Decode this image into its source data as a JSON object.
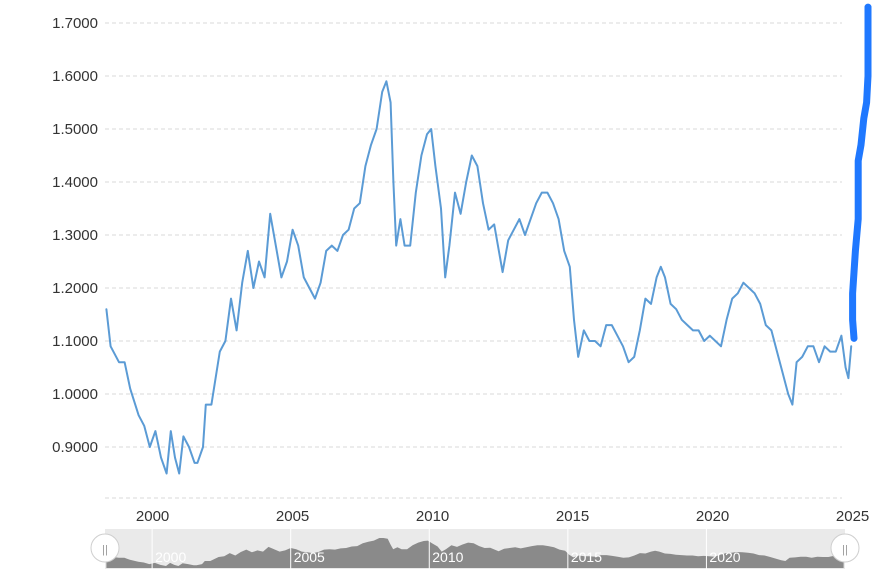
{
  "chart_data": {
    "type": "line",
    "title": "",
    "xlabel": "",
    "ylabel": "",
    "xlim": [
      1998.3,
      2025.0
    ],
    "ylim": [
      0.8,
      1.72
    ],
    "y_ticks": [
      0.9,
      1.0,
      1.1,
      1.2,
      1.3,
      1.4,
      1.5,
      1.6,
      1.7
    ],
    "y_tick_labels": [
      "0.9000",
      "1.0000",
      "1.1000",
      "1.2000",
      "1.3000",
      "1.4000",
      "1.5000",
      "1.6000",
      "1.7000"
    ],
    "x_ticks": [
      2000,
      2005,
      2010,
      2015,
      2020,
      2025
    ],
    "x_tick_labels": [
      "2000",
      "2005",
      "2010",
      "2015",
      "2020",
      "2025"
    ],
    "grid": true,
    "legend": "none",
    "series": [
      {
        "color": "#5b9bd5",
        "points": [
          [
            1998.35,
            1.16
          ],
          [
            1998.5,
            1.09
          ],
          [
            1998.8,
            1.06
          ],
          [
            1999.0,
            1.06
          ],
          [
            1999.2,
            1.01
          ],
          [
            1999.5,
            0.96
          ],
          [
            1999.7,
            0.94
          ],
          [
            1999.9,
            0.9
          ],
          [
            2000.1,
            0.93
          ],
          [
            2000.3,
            0.88
          ],
          [
            2000.5,
            0.85
          ],
          [
            2000.65,
            0.93
          ],
          [
            2000.8,
            0.88
          ],
          [
            2000.95,
            0.85
          ],
          [
            2001.1,
            0.92
          ],
          [
            2001.3,
            0.9
          ],
          [
            2001.5,
            0.87
          ],
          [
            2001.6,
            0.87
          ],
          [
            2001.8,
            0.9
          ],
          [
            2001.9,
            0.98
          ],
          [
            2002.1,
            0.98
          ],
          [
            2002.4,
            1.08
          ],
          [
            2002.6,
            1.1
          ],
          [
            2002.8,
            1.18
          ],
          [
            2003.0,
            1.12
          ],
          [
            2003.2,
            1.21
          ],
          [
            2003.4,
            1.27
          ],
          [
            2003.6,
            1.2
          ],
          [
            2003.8,
            1.25
          ],
          [
            2004.0,
            1.22
          ],
          [
            2004.2,
            1.34
          ],
          [
            2004.4,
            1.28
          ],
          [
            2004.6,
            1.22
          ],
          [
            2004.8,
            1.25
          ],
          [
            2005.0,
            1.31
          ],
          [
            2005.2,
            1.28
          ],
          [
            2005.4,
            1.22
          ],
          [
            2005.6,
            1.2
          ],
          [
            2005.8,
            1.18
          ],
          [
            2006.0,
            1.21
          ],
          [
            2006.2,
            1.27
          ],
          [
            2006.4,
            1.28
          ],
          [
            2006.6,
            1.27
          ],
          [
            2006.8,
            1.3
          ],
          [
            2007.0,
            1.31
          ],
          [
            2007.2,
            1.35
          ],
          [
            2007.4,
            1.36
          ],
          [
            2007.6,
            1.43
          ],
          [
            2007.8,
            1.47
          ],
          [
            2008.0,
            1.5
          ],
          [
            2008.2,
            1.57
          ],
          [
            2008.35,
            1.59
          ],
          [
            2008.5,
            1.55
          ],
          [
            2008.6,
            1.4
          ],
          [
            2008.7,
            1.28
          ],
          [
            2008.85,
            1.33
          ],
          [
            2009.0,
            1.28
          ],
          [
            2009.2,
            1.28
          ],
          [
            2009.4,
            1.38
          ],
          [
            2009.6,
            1.45
          ],
          [
            2009.8,
            1.49
          ],
          [
            2009.95,
            1.5
          ],
          [
            2010.1,
            1.43
          ],
          [
            2010.3,
            1.35
          ],
          [
            2010.45,
            1.22
          ],
          [
            2010.6,
            1.28
          ],
          [
            2010.8,
            1.38
          ],
          [
            2011.0,
            1.34
          ],
          [
            2011.2,
            1.4
          ],
          [
            2011.4,
            1.45
          ],
          [
            2011.6,
            1.43
          ],
          [
            2011.8,
            1.36
          ],
          [
            2012.0,
            1.31
          ],
          [
            2012.2,
            1.32
          ],
          [
            2012.5,
            1.23
          ],
          [
            2012.7,
            1.29
          ],
          [
            2012.9,
            1.31
          ],
          [
            2013.1,
            1.33
          ],
          [
            2013.3,
            1.3
          ],
          [
            2013.5,
            1.33
          ],
          [
            2013.7,
            1.36
          ],
          [
            2013.9,
            1.38
          ],
          [
            2014.1,
            1.38
          ],
          [
            2014.3,
            1.36
          ],
          [
            2014.5,
            1.33
          ],
          [
            2014.7,
            1.27
          ],
          [
            2014.9,
            1.24
          ],
          [
            2015.05,
            1.14
          ],
          [
            2015.2,
            1.07
          ],
          [
            2015.4,
            1.12
          ],
          [
            2015.6,
            1.1
          ],
          [
            2015.8,
            1.1
          ],
          [
            2016.0,
            1.09
          ],
          [
            2016.2,
            1.13
          ],
          [
            2016.4,
            1.13
          ],
          [
            2016.6,
            1.11
          ],
          [
            2016.8,
            1.09
          ],
          [
            2017.0,
            1.06
          ],
          [
            2017.2,
            1.07
          ],
          [
            2017.4,
            1.12
          ],
          [
            2017.6,
            1.18
          ],
          [
            2017.8,
            1.17
          ],
          [
            2018.0,
            1.22
          ],
          [
            2018.15,
            1.24
          ],
          [
            2018.3,
            1.22
          ],
          [
            2018.5,
            1.17
          ],
          [
            2018.7,
            1.16
          ],
          [
            2018.9,
            1.14
          ],
          [
            2019.1,
            1.13
          ],
          [
            2019.3,
            1.12
          ],
          [
            2019.5,
            1.12
          ],
          [
            2019.7,
            1.1
          ],
          [
            2019.9,
            1.11
          ],
          [
            2020.1,
            1.1
          ],
          [
            2020.3,
            1.09
          ],
          [
            2020.5,
            1.14
          ],
          [
            2020.7,
            1.18
          ],
          [
            2020.9,
            1.19
          ],
          [
            2021.1,
            1.21
          ],
          [
            2021.3,
            1.2
          ],
          [
            2021.5,
            1.19
          ],
          [
            2021.7,
            1.17
          ],
          [
            2021.9,
            1.13
          ],
          [
            2022.1,
            1.12
          ],
          [
            2022.3,
            1.08
          ],
          [
            2022.5,
            1.04
          ],
          [
            2022.7,
            1.0
          ],
          [
            2022.85,
            0.98
          ],
          [
            2023.0,
            1.06
          ],
          [
            2023.2,
            1.07
          ],
          [
            2023.4,
            1.09
          ],
          [
            2023.6,
            1.09
          ],
          [
            2023.8,
            1.06
          ],
          [
            2024.0,
            1.09
          ],
          [
            2024.2,
            1.08
          ],
          [
            2024.4,
            1.08
          ],
          [
            2024.6,
            1.11
          ],
          [
            2024.75,
            1.05
          ],
          [
            2024.85,
            1.03
          ],
          [
            2024.95,
            1.09
          ]
        ]
      },
      {
        "color": "#1f78ff",
        "points": [
          [
            2025.05,
            1.105
          ],
          [
            2025.0,
            1.14
          ],
          [
            2025.0,
            1.19
          ],
          [
            2025.05,
            1.23
          ],
          [
            2025.1,
            1.27
          ],
          [
            2025.2,
            1.33
          ],
          [
            2025.2,
            1.44
          ],
          [
            2025.3,
            1.47
          ],
          [
            2025.4,
            1.52
          ],
          [
            2025.5,
            1.55
          ],
          [
            2025.55,
            1.6
          ],
          [
            2025.55,
            1.73
          ]
        ]
      }
    ]
  },
  "navigator": {
    "labels": [
      "2000",
      "2005",
      "2010",
      "2015",
      "2020"
    ],
    "label_years": [
      2000,
      2005,
      2010,
      2015,
      2020
    ],
    "handle_glyph": "||"
  }
}
